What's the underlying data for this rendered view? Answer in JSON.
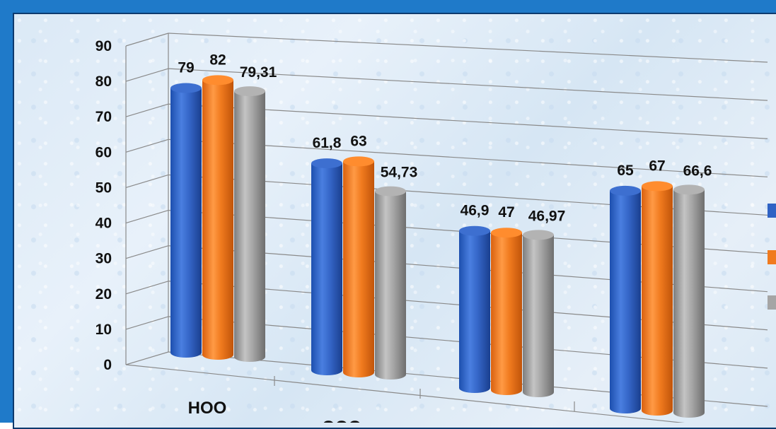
{
  "chart_data": {
    "type": "bar",
    "style": "3d-cylinder",
    "categories": [
      "НОО",
      "ООО",
      "",
      ""
    ],
    "series": [
      {
        "values": [
          79,
          61.8,
          46.9,
          65
        ],
        "color": "#2f62c4"
      },
      {
        "values": [
          82,
          63,
          47,
          67
        ],
        "color": "#f07a1e"
      },
      {
        "values": [
          79.31,
          54.73,
          46.97,
          66.6
        ],
        "color": "#9b9b9b"
      }
    ],
    "data_labels": [
      [
        "79",
        "61,8",
        "46,9",
        "65"
      ],
      [
        "82",
        "63",
        "47",
        "67"
      ],
      [
        "79,31",
        "54,73",
        "46,97",
        "66,6"
      ]
    ],
    "yticks": [
      "0",
      "10",
      "20",
      "30",
      "40",
      "50",
      "60",
      "70",
      "80",
      "90"
    ],
    "ylim": [
      0,
      90
    ],
    "grid": true,
    "legend": "right"
  }
}
